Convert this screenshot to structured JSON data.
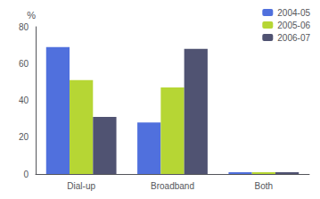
{
  "chart_data": {
    "type": "bar",
    "categories": [
      "Dial-up",
      "Broadband",
      "Both"
    ],
    "series": [
      {
        "name": "2004-05",
        "values": [
          69,
          28,
          1
        ]
      },
      {
        "name": "2005-06",
        "values": [
          51,
          47,
          1
        ]
      },
      {
        "name": "2006-07",
        "values": [
          31,
          68,
          1
        ]
      }
    ],
    "ylabel": "%",
    "ylim": [
      0,
      80
    ],
    "yticks": [
      0,
      20,
      40,
      60,
      80
    ],
    "grid": false,
    "legend": "upper right"
  }
}
